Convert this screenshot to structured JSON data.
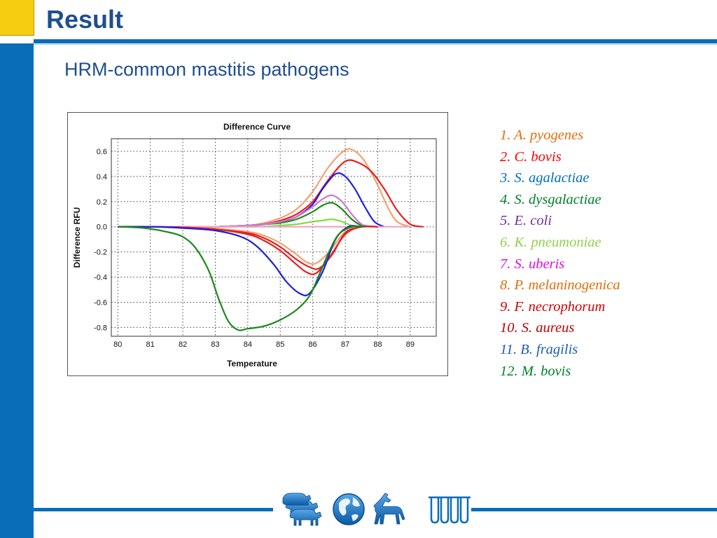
{
  "slide": {
    "title": "Result",
    "subtitle": "HRM-common mastitis pathogens"
  },
  "chart_data": {
    "type": "line",
    "title": "Difference Curve",
    "xlabel": "Temperature",
    "ylabel": "Difference RFU",
    "xlim": [
      79.8,
      89.8
    ],
    "ylim": [
      -0.87,
      0.7
    ],
    "xticks": [
      80,
      81,
      82,
      83,
      84,
      85,
      86,
      87,
      88,
      89
    ],
    "yticks": [
      0.6,
      0.4,
      0.2,
      0.0,
      -0.2,
      -0.4,
      -0.6,
      -0.8
    ],
    "ytick_labels": [
      "0.6",
      "0.4",
      "0.2",
      "0.0",
      "-0.2",
      "-0.4",
      "-0.6",
      "-0.8"
    ],
    "grid": true,
    "series": [
      {
        "color": "#f2a26e",
        "x": [
          80,
          82,
          83,
          84,
          84.5,
          85,
          85.5,
          86,
          86.5,
          87,
          87.3,
          87.6,
          88,
          88.3,
          88.6,
          89
        ],
        "y": [
          0,
          0,
          0,
          0.01,
          0.03,
          0.07,
          0.14,
          0.28,
          0.48,
          0.61,
          0.6,
          0.52,
          0.33,
          0.16,
          0.04,
          0
        ]
      },
      {
        "color": "#e81e1e",
        "x": [
          80,
          82,
          83,
          84,
          84.5,
          85,
          85.5,
          86,
          86.5,
          87,
          87.4,
          87.8,
          88.2,
          88.6,
          89,
          89.4
        ],
        "y": [
          0,
          0,
          0,
          0.01,
          0.02,
          0.05,
          0.1,
          0.2,
          0.38,
          0.52,
          0.51,
          0.44,
          0.3,
          0.13,
          0.02,
          0
        ]
      },
      {
        "color": "#1d1de0",
        "x": [
          80,
          82,
          83,
          84,
          84.5,
          85,
          85.5,
          86,
          86.3,
          86.7,
          87,
          87.3,
          87.6,
          87.9,
          88.2
        ],
        "y": [
          0,
          0,
          0,
          0.01,
          0.02,
          0.04,
          0.08,
          0.18,
          0.3,
          0.42,
          0.4,
          0.3,
          0.16,
          0.04,
          0
        ]
      },
      {
        "color": "#1a8a1a",
        "x": [
          80,
          82,
          83,
          84,
          84.5,
          85,
          85.5,
          86,
          86.3,
          86.6,
          86.9,
          87.2,
          87.5,
          87.8
        ],
        "y": [
          0,
          0,
          0,
          0.01,
          0.02,
          0.03,
          0.06,
          0.12,
          0.17,
          0.19,
          0.14,
          0.06,
          0.01,
          0
        ]
      },
      {
        "color": "#d074d0",
        "x": [
          80,
          82,
          83,
          84,
          84.5,
          85,
          85.5,
          86,
          86.3,
          86.6,
          86.9,
          87.2,
          87.5,
          87.8
        ],
        "y": [
          0,
          0,
          0,
          0.01,
          0.02,
          0.04,
          0.08,
          0.16,
          0.22,
          0.25,
          0.2,
          0.1,
          0.02,
          0
        ]
      },
      {
        "color": "#7be03d",
        "x": [
          80,
          84,
          85,
          85.5,
          86,
          86.3,
          86.6,
          86.9,
          87.2,
          87.5
        ],
        "y": [
          0,
          0,
          0.01,
          0.02,
          0.04,
          0.05,
          0.06,
          0.04,
          0.01,
          0
        ]
      },
      {
        "color": "#f4a0c8",
        "x": [
          80,
          82,
          84,
          86,
          87,
          88,
          89
        ],
        "y": [
          0,
          0,
          0,
          0,
          0,
          0,
          0
        ]
      },
      {
        "color": "#f2a26e",
        "x": [
          80,
          81,
          82,
          83,
          84,
          84.5,
          85,
          85.5,
          85.8,
          86.1,
          86.5,
          87,
          87.5,
          88
        ],
        "y": [
          0,
          0,
          -0.005,
          -0.015,
          -0.04,
          -0.07,
          -0.13,
          -0.22,
          -0.28,
          -0.29,
          -0.2,
          -0.04,
          0,
          0
        ]
      },
      {
        "color": "#e81e1e",
        "x": [
          80,
          81,
          82,
          83,
          84,
          84.5,
          85,
          85.5,
          85.8,
          86.1,
          86.5,
          87,
          87.5,
          88
        ],
        "y": [
          0,
          0,
          -0.005,
          -0.02,
          -0.06,
          -0.11,
          -0.19,
          -0.3,
          -0.36,
          -0.37,
          -0.25,
          -0.06,
          0,
          0
        ]
      },
      {
        "color": "#e81e1e",
        "x": [
          80,
          81,
          82,
          83,
          84,
          84.5,
          85,
          85.5,
          85.9,
          86.2,
          86.6,
          87,
          87.5,
          88
        ],
        "y": [
          0,
          0,
          -0.005,
          -0.02,
          -0.05,
          -0.09,
          -0.16,
          -0.26,
          -0.32,
          -0.33,
          -0.22,
          -0.05,
          0,
          0
        ]
      },
      {
        "color": "#1d1de0",
        "x": [
          80,
          81,
          82,
          83,
          83.8,
          84.3,
          84.8,
          85.2,
          85.6,
          85.9,
          86.3,
          86.7,
          87.1,
          87.5
        ],
        "y": [
          0,
          0,
          -0.01,
          -0.03,
          -0.08,
          -0.16,
          -0.3,
          -0.44,
          -0.53,
          -0.53,
          -0.36,
          -0.1,
          0,
          0
        ]
      },
      {
        "color": "#1a8a1a",
        "x": [
          80,
          80.8,
          81.5,
          82,
          82.4,
          82.8,
          83.1,
          83.4,
          83.7,
          84,
          84.5,
          85,
          85.5,
          85.9,
          86.2,
          86.5,
          86.8,
          87.2,
          87.6
        ],
        "y": [
          0,
          -0.01,
          -0.04,
          -0.08,
          -0.17,
          -0.35,
          -0.57,
          -0.75,
          -0.82,
          -0.81,
          -0.79,
          -0.74,
          -0.66,
          -0.55,
          -0.38,
          -0.2,
          -0.06,
          0,
          0
        ]
      }
    ]
  },
  "legend": [
    {
      "text": "1. A. pyogenes",
      "color": "#e46c0a"
    },
    {
      "text": "2. C. bovis",
      "color": "#ff0000"
    },
    {
      "text": "3. S. agalactiae",
      "color": "#0070c0"
    },
    {
      "text": "4. S. dysgalactiae",
      "color": "#00802a"
    },
    {
      "text": "5. E. coli",
      "color": "#7030a0"
    },
    {
      "text": "6. K. pneumoniae",
      "color": "#92d050"
    },
    {
      "text": "7. S. uberis",
      "color": "#e00ce0"
    },
    {
      "text": "8. P. melaninogenica",
      "color": "#e46c0a"
    },
    {
      "text": "9. F. necrophorum",
      "color": "#d40000"
    },
    {
      "text": "10.  S. aureus",
      "color": "#c00000"
    },
    {
      "text": "11. B. fragilis",
      "color": "#1f5cb8"
    },
    {
      "text": "12.  M. bovis",
      "color": "#00802a"
    }
  ],
  "footer": {
    "icons": [
      "cattle-herd-icon",
      "globe-icon",
      "horse-icon",
      "test-tubes-icon"
    ],
    "accent": "#0a6db8"
  }
}
